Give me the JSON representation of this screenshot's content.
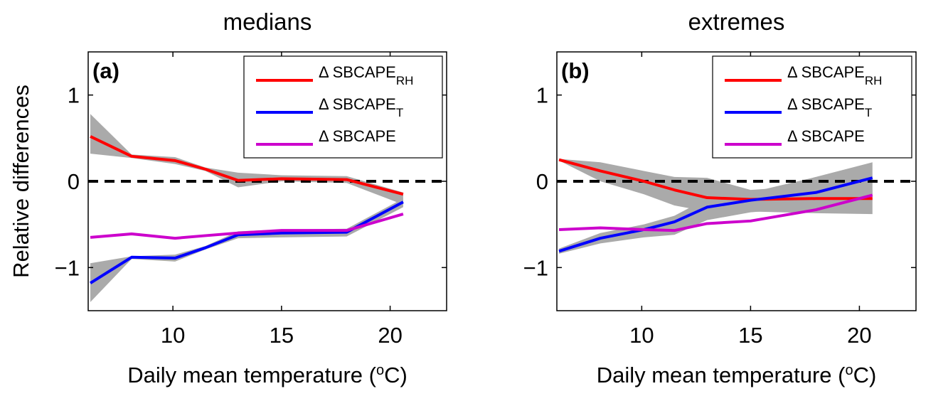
{
  "chart_data": [
    {
      "type": "line",
      "title": "medians",
      "panel_label": "(a)",
      "ylabel": "Relative differences",
      "xlabel": [
        "Daily mean temperature (",
        "o",
        "C)"
      ],
      "x": [
        6.2,
        8.1,
        10.1,
        11.5,
        13.0,
        15.0,
        18.0,
        20.6
      ],
      "xlim": [
        6.1,
        22.6
      ],
      "xticks": [
        10,
        15,
        20
      ],
      "ylim": [
        -1.5,
        1.5
      ],
      "yticks": [
        {
          "value": -1,
          "label": "−1"
        },
        0,
        1
      ],
      "hline": 0,
      "band_color": "#aaaaaa",
      "series": [
        {
          "name": "Δ SBCAPE",
          "name_subscript": "RH",
          "color": "#ff0000",
          "values": [
            0.52,
            0.29,
            0.24,
            0.14,
            0.01,
            0.03,
            0.02,
            -0.15
          ],
          "band": {
            "upper": [
              0.78,
              0.31,
              0.28,
              0.16,
              0.1,
              0.07,
              0.06,
              -0.13
            ],
            "lower": [
              0.32,
              0.27,
              0.2,
              0.12,
              -0.07,
              0.0,
              -0.02,
              -0.27
            ]
          }
        },
        {
          "name": "Δ SBCAPE",
          "name_subscript": "T",
          "color": "#0000ff",
          "values": [
            -1.18,
            -0.88,
            -0.89,
            -0.77,
            -0.62,
            -0.6,
            -0.59,
            -0.24
          ],
          "band": {
            "upper": [
              -0.95,
              -0.87,
              -0.85,
              -0.75,
              -0.58,
              -0.56,
              -0.55,
              -0.2
            ],
            "lower": [
              -1.4,
              -0.9,
              -0.93,
              -0.79,
              -0.66,
              -0.65,
              -0.64,
              -0.3
            ]
          }
        },
        {
          "name": "Δ SBCAPE",
          "color": "#cc00cc",
          "values": [
            -0.65,
            -0.61,
            -0.66,
            -0.63,
            -0.6,
            -0.57,
            -0.57,
            -0.38
          ]
        }
      ]
    },
    {
      "type": "line",
      "title": "extremes",
      "panel_label": "(b)",
      "xlabel": [
        "Daily mean temperature (",
        "o",
        "C)"
      ],
      "x": [
        6.2,
        8.1,
        10.1,
        11.5,
        13.0,
        15.0,
        18.0,
        20.6
      ],
      "xlim": [
        6.1,
        22.6
      ],
      "xticks": [
        10,
        15,
        20
      ],
      "ylim": [
        -1.5,
        1.5
      ],
      "yticks": [
        {
          "value": -1,
          "label": "−1"
        },
        0,
        1
      ],
      "hline": 0,
      "band_color": "#aaaaaa",
      "series": [
        {
          "name": "Δ SBCAPE",
          "name_subscript": "RH",
          "color": "#ff0000",
          "values": [
            0.25,
            0.12,
            0.0,
            -0.1,
            -0.19,
            -0.21,
            -0.2,
            -0.2
          ],
          "band": {
            "upper": [
              0.26,
              0.22,
              0.12,
              0.05,
              0.04,
              -0.1,
              -0.05,
              -0.1
            ],
            "lower": [
              0.24,
              0.0,
              -0.15,
              -0.28,
              -0.35,
              -0.35,
              -0.37,
              -0.38
            ]
          }
        },
        {
          "name": "Δ SBCAPE",
          "name_subscript": "T",
          "color": "#0000ff",
          "values": [
            -0.81,
            -0.66,
            -0.56,
            -0.47,
            -0.3,
            -0.22,
            -0.13,
            0.04
          ],
          "band": {
            "upper": [
              -0.78,
              -0.6,
              -0.5,
              -0.4,
              -0.2,
              -0.13,
              0.05,
              0.22
            ],
            "lower": [
              -0.84,
              -0.72,
              -0.65,
              -0.62,
              -0.45,
              -0.36,
              -0.3,
              -0.15
            ]
          }
        },
        {
          "name": "Δ SBCAPE",
          "color": "#cc00cc",
          "values": [
            -0.56,
            -0.54,
            -0.56,
            -0.57,
            -0.49,
            -0.46,
            -0.33,
            -0.16
          ]
        }
      ]
    }
  ]
}
